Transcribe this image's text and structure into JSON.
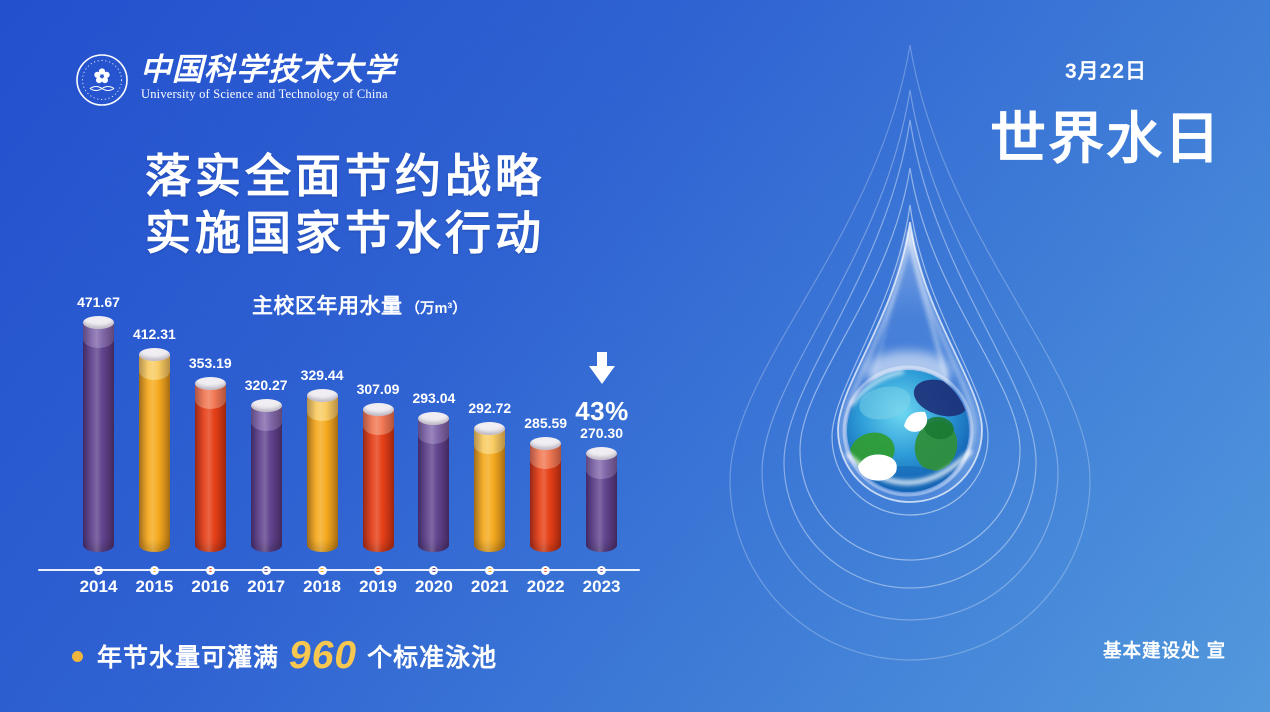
{
  "header": {
    "university": {
      "name_cn": "中国科学技术大学",
      "name_en": "University of Science and Technology of China"
    },
    "date_label": "3月22日",
    "event_title": "世界水日"
  },
  "slogan": {
    "line1": "落实全面节约战略",
    "line2": "实施国家节水行动"
  },
  "chart_data": {
    "type": "bar",
    "title": "主校区年用水量",
    "unit_label": "（万m³）",
    "categories": [
      "2014",
      "2015",
      "2016",
      "2017",
      "2018",
      "2019",
      "2020",
      "2021",
      "2022",
      "2023"
    ],
    "values": [
      471.67,
      412.31,
      353.19,
      320.27,
      329.44,
      307.09,
      293.04,
      292.72,
      285.59,
      270.3
    ],
    "series_name": "年用水量",
    "ylim": [
      0,
      500
    ],
    "grid": "off",
    "legend": "none",
    "axis_style": "timeline-dots",
    "bar_style": "3d-cylinder",
    "color_cycle": [
      "purple",
      "yellow",
      "red"
    ],
    "palette": {
      "purple": {
        "base": "#5b3d8a",
        "light": "#7d64a8"
      },
      "yellow": {
        "base": "#f5a716",
        "light": "#f9ca5c"
      },
      "red": {
        "base": "#e5390f",
        "light": "#f0744e"
      }
    },
    "cap_color": "#f0eef2",
    "decrease_label": "43%"
  },
  "footer": {
    "note_prefix": "年节水量可灌满",
    "note_value": "960",
    "note_suffix": "个标准泳池",
    "publisher": "基本建设处 宣"
  },
  "theme": {
    "bg_top_left": "#1e4cce",
    "bg_bottom_right": "#4f98de",
    "accent_gold": "#f7c750",
    "text_color": "#ffffff"
  }
}
